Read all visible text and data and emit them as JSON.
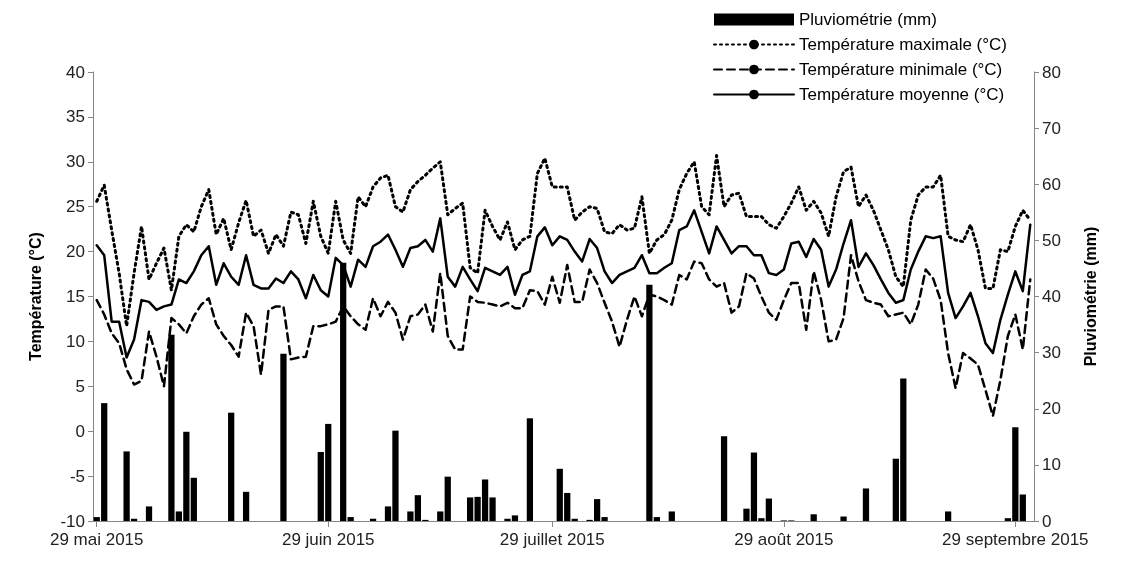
{
  "chart_data": {
    "type": "line",
    "ylabel": "Température (°C)",
    "y2label": "Pluviométrie (mm)",
    "x": [
      "2015-05-29",
      "2015-05-30",
      "2015-05-31",
      "2015-06-01",
      "2015-06-02",
      "2015-06-03",
      "2015-06-04",
      "2015-06-05",
      "2015-06-06",
      "2015-06-07",
      "2015-06-08",
      "2015-06-09",
      "2015-06-10",
      "2015-06-11",
      "2015-06-12",
      "2015-06-13",
      "2015-06-14",
      "2015-06-15",
      "2015-06-16",
      "2015-06-17",
      "2015-06-18",
      "2015-06-19",
      "2015-06-20",
      "2015-06-21",
      "2015-06-22",
      "2015-06-23",
      "2015-06-24",
      "2015-06-25",
      "2015-06-26",
      "2015-06-27",
      "2015-06-28",
      "2015-06-29",
      "2015-06-30",
      "2015-07-01",
      "2015-07-02",
      "2015-07-03",
      "2015-07-04",
      "2015-07-05",
      "2015-07-06",
      "2015-07-07",
      "2015-07-08",
      "2015-07-09",
      "2015-07-10",
      "2015-07-11",
      "2015-07-12",
      "2015-07-13",
      "2015-07-14",
      "2015-07-15",
      "2015-07-16",
      "2015-07-17",
      "2015-07-18",
      "2015-07-19",
      "2015-07-20",
      "2015-07-21",
      "2015-07-22",
      "2015-07-23",
      "2015-07-24",
      "2015-07-25",
      "2015-07-26",
      "2015-07-27",
      "2015-07-28",
      "2015-07-29",
      "2015-07-30",
      "2015-07-31",
      "2015-08-01",
      "2015-08-02",
      "2015-08-03",
      "2015-08-04",
      "2015-08-05",
      "2015-08-06",
      "2015-08-07",
      "2015-08-08",
      "2015-08-09",
      "2015-08-10",
      "2015-08-11",
      "2015-08-12",
      "2015-08-13",
      "2015-08-14",
      "2015-08-15",
      "2015-08-16",
      "2015-08-17",
      "2015-08-18",
      "2015-08-19",
      "2015-08-20",
      "2015-08-21",
      "2015-08-22",
      "2015-08-23",
      "2015-08-24",
      "2015-08-25",
      "2015-08-26",
      "2015-08-27",
      "2015-08-28",
      "2015-08-29",
      "2015-08-30",
      "2015-08-31",
      "2015-09-01",
      "2015-09-02",
      "2015-09-03",
      "2015-09-04",
      "2015-09-05",
      "2015-09-06",
      "2015-09-07",
      "2015-09-08",
      "2015-09-09",
      "2015-09-10",
      "2015-09-11",
      "2015-09-12",
      "2015-09-13",
      "2015-09-14",
      "2015-09-15",
      "2015-09-16",
      "2015-09-17",
      "2015-09-18",
      "2015-09-19",
      "2015-09-20",
      "2015-09-21",
      "2015-09-22",
      "2015-09-23",
      "2015-09-24",
      "2015-09-25",
      "2015-09-26",
      "2015-09-27",
      "2015-09-28",
      "2015-09-29",
      "2015-09-30",
      "2015-10-01"
    ],
    "series": [
      {
        "name": "Pluviométrie (mm)",
        "type": "bar",
        "axis": "y2",
        "color": "#000000",
        "values": [
          0.7,
          21,
          null,
          null,
          12.4,
          0.4,
          null,
          2.6,
          null,
          null,
          33.2,
          1.7,
          15.9,
          7.7,
          null,
          null,
          null,
          null,
          19.3,
          null,
          5.2,
          null,
          null,
          null,
          null,
          29.8,
          null,
          null,
          null,
          null,
          12.3,
          17.3,
          null,
          46,
          0.7,
          null,
          null,
          0.4,
          null,
          2.6,
          16.1,
          null,
          1.7,
          4.6,
          0.2,
          null,
          1.7,
          7.9,
          null,
          null,
          4.2,
          4.3,
          7.4,
          4.2,
          null,
          0.4,
          1,
          null,
          18.3,
          null,
          null,
          null,
          9.3,
          5,
          0.4,
          null,
          0.2,
          3.9,
          0.7,
          null,
          null,
          null,
          null,
          null,
          42.1,
          0.7,
          null,
          1.7,
          null,
          null,
          null,
          null,
          null,
          null,
          15.1,
          null,
          null,
          2.2,
          12.2,
          0.5,
          4,
          null,
          0.1,
          0.1,
          null,
          null,
          1.2,
          null,
          null,
          null,
          0.8,
          null,
          null,
          5.8,
          null,
          null,
          null,
          11.1,
          25.4,
          null,
          null,
          null,
          null,
          null,
          1.7,
          null,
          null,
          null,
          null,
          null,
          null,
          null,
          0.5,
          16.7,
          4.7,
          null
        ]
      },
      {
        "name": "Température maximale (°C)",
        "color": "#000000",
        "line_style": "dotted",
        "values": [
          25.6,
          27.4,
          22.4,
          17.6,
          11.7,
          17.6,
          22.8,
          16.9,
          18.7,
          20.4,
          15.7,
          21.7,
          23,
          22.2,
          25,
          26.9,
          21.9,
          23.7,
          20.2,
          23.2,
          25.7,
          21.7,
          22.4,
          19.8,
          21.9,
          20.6,
          24.4,
          24.1,
          20.9,
          25.6,
          21.7,
          19.8,
          25.6,
          21.3,
          19.8,
          26.1,
          25,
          27.2,
          28.2,
          28.5,
          25,
          24.4,
          26.9,
          27.8,
          28.5,
          29.3,
          30,
          24.1,
          24.8,
          25.4,
          18.2,
          17.6,
          24.6,
          22.8,
          21.3,
          23.3,
          20.2,
          21.3,
          21.7,
          28.7,
          30.4,
          27.2,
          27.2,
          27.2,
          23.5,
          24.4,
          25,
          24.8,
          22.2,
          22,
          23,
          22.4,
          22.6,
          26.1,
          19.8,
          21.3,
          21.9,
          23.5,
          26.9,
          28.7,
          30,
          25,
          24.1,
          30.7,
          25,
          26.3,
          26.5,
          23.9,
          23.9,
          23.9,
          23,
          22.6,
          23.9,
          25.4,
          27.2,
          24.6,
          25.6,
          24.3,
          21.7,
          26.1,
          28.9,
          29.4,
          25,
          26.3,
          24.6,
          22.4,
          20.2,
          17.2,
          16.1,
          23.5,
          26.3,
          27.2,
          27.2,
          28.5,
          21.7,
          21.3,
          21.1,
          23,
          20.2,
          15.9,
          15.9,
          20.2,
          20,
          22.8,
          24.6,
          23.5
        ]
      },
      {
        "name": "Température minimale (°C)",
        "color": "#000000",
        "line_style": "dashed",
        "values": [
          14.6,
          13,
          10.9,
          9.8,
          6.9,
          5.2,
          5.6,
          11.1,
          8.3,
          5,
          12.6,
          11.9,
          10.9,
          12.8,
          14.1,
          14.8,
          11.9,
          10.6,
          9.6,
          8.3,
          13.2,
          11.7,
          6.3,
          13.5,
          13.9,
          13.9,
          8,
          8.2,
          8.3,
          11.7,
          11.7,
          11.9,
          12.2,
          13.9,
          12.8,
          11.9,
          11.3,
          14.8,
          12.8,
          14.4,
          13.2,
          10.2,
          12.8,
          13,
          14.1,
          11.1,
          17.6,
          10.6,
          9.1,
          9.1,
          15,
          14.4,
          14.3,
          14.1,
          13.9,
          14.3,
          13.7,
          13.7,
          15.7,
          15.6,
          14.1,
          17.2,
          14.3,
          18.5,
          14.4,
          14.4,
          18,
          16.5,
          14.3,
          12.2,
          9.4,
          12.4,
          15,
          12.8,
          15.2,
          15,
          14.6,
          14.1,
          17.4,
          16.9,
          18.9,
          18.7,
          16.9,
          16.1,
          16.5,
          13.2,
          13.9,
          17.6,
          17,
          15,
          13.2,
          12.4,
          14.6,
          16.5,
          16.5,
          11.3,
          17.8,
          14.6,
          10,
          10.2,
          12.6,
          19.6,
          16.7,
          14.6,
          14.3,
          14.1,
          12.8,
          13,
          13.2,
          11.9,
          14.1,
          18,
          17,
          14.6,
          8.7,
          4.8,
          8.7,
          8.1,
          7.4,
          4.6,
          1.7,
          5.7,
          10.6,
          13,
          9.1,
          16.9
        ]
      },
      {
        "name": "Température moyenne (°C)",
        "color": "#000000",
        "line_style": "solid",
        "values": [
          20.7,
          19.6,
          12.2,
          12.2,
          8.2,
          10.2,
          14.6,
          14.4,
          13.5,
          13.9,
          14.1,
          16.9,
          16.5,
          17.8,
          19.6,
          20.6,
          16.3,
          18.7,
          17.2,
          16.3,
          19.6,
          16.3,
          15.9,
          15.9,
          17,
          16.5,
          17.8,
          16.9,
          14.8,
          17.4,
          15.7,
          15,
          19.3,
          18.5,
          16.1,
          19.1,
          18.3,
          20.6,
          21.1,
          21.9,
          20.2,
          18.3,
          20.4,
          20.6,
          21.3,
          20,
          23.7,
          17.2,
          16.1,
          18.3,
          16.9,
          15.6,
          18.2,
          17.8,
          17.4,
          18.3,
          15.2,
          17.4,
          17.8,
          21.7,
          22.7,
          20.7,
          21.7,
          21.3,
          20,
          18.9,
          21.4,
          20.4,
          17.8,
          16.5,
          17.4,
          17.8,
          18.2,
          19.6,
          17.6,
          17.6,
          18.2,
          18.7,
          22.4,
          22.8,
          24.6,
          22.2,
          19.8,
          22.8,
          21.3,
          19.8,
          20.6,
          20.6,
          19.6,
          19.6,
          17.6,
          17.4,
          18,
          20.9,
          21.1,
          19.4,
          21.4,
          20.2,
          16.1,
          18,
          20.9,
          23.5,
          18.3,
          19.8,
          18.5,
          16.9,
          15.4,
          14.3,
          14.6,
          18,
          20,
          21.7,
          21.5,
          21.7,
          15.4,
          12.6,
          13.9,
          15.4,
          12.8,
          9.8,
          8.7,
          12.4,
          15.2,
          17.8,
          15.6,
          23
        ]
      }
    ],
    "xlim": [
      "2015-05-28T12:00",
      "2015-10-01T12:00"
    ],
    "xticks": [
      {
        "value": "2015-05-29",
        "label": "29 mai 2015"
      },
      {
        "value": "2015-06-29",
        "label": "29 juin 2015"
      },
      {
        "value": "2015-07-29",
        "label": "29 juillet 2015"
      },
      {
        "value": "2015-08-29",
        "label": "29 août 2015"
      },
      {
        "value": "2015-09-29",
        "label": "29 septembre 2015"
      }
    ],
    "ylim": [
      -10,
      40
    ],
    "yticks": [
      -10,
      -5,
      0,
      5,
      10,
      15,
      20,
      25,
      30,
      35,
      40
    ],
    "y2lim": [
      0,
      80
    ],
    "y2ticks": [
      0,
      10,
      20,
      30,
      40,
      50,
      60,
      70,
      80
    ],
    "grid": false,
    "legend": "top right",
    "marker": "none"
  }
}
